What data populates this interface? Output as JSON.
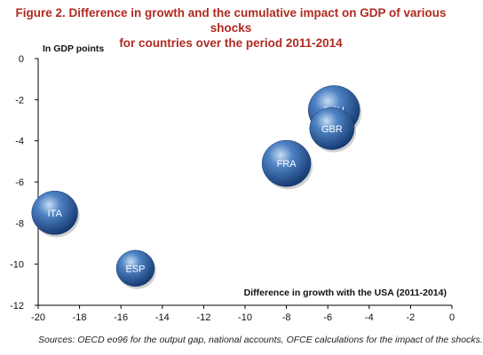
{
  "figure": {
    "title_line1": "Figure 2. Difference in growth and the cumulative impact on GDP of various shocks",
    "title_line2": "for countries over the period 2011-2014",
    "source_label": "Sources:",
    "source_text": " OECD eo96 for the output gap, national accounts, OFCE calculations for the impact of the shocks."
  },
  "chart_data": {
    "type": "scatter",
    "ylabel": "In GDP points",
    "xlabel": "Difference in growth with the USA (2011-2014)",
    "xlim": [
      -20,
      0
    ],
    "ylim": [
      -12,
      0
    ],
    "x_ticks": [
      -20,
      -18,
      -16,
      -14,
      -12,
      -10,
      -8,
      -6,
      -4,
      -2,
      0
    ],
    "y_ticks": [
      0,
      -2,
      -4,
      -6,
      -8,
      -10,
      -12
    ],
    "grid": false,
    "bubble_color": "#2f63a6",
    "points": [
      {
        "label": "DEU",
        "x": -5.7,
        "y": -2.5,
        "size": 1.0
      },
      {
        "label": "GBR",
        "x": -5.8,
        "y": -3.4,
        "size": 0.75
      },
      {
        "label": "FRA",
        "x": -8.0,
        "y": -5.1,
        "size": 0.9
      },
      {
        "label": "ITA",
        "x": -19.2,
        "y": -7.5,
        "size": 0.8
      },
      {
        "label": "ESP",
        "x": -15.3,
        "y": -10.2,
        "size": 0.55
      }
    ]
  }
}
